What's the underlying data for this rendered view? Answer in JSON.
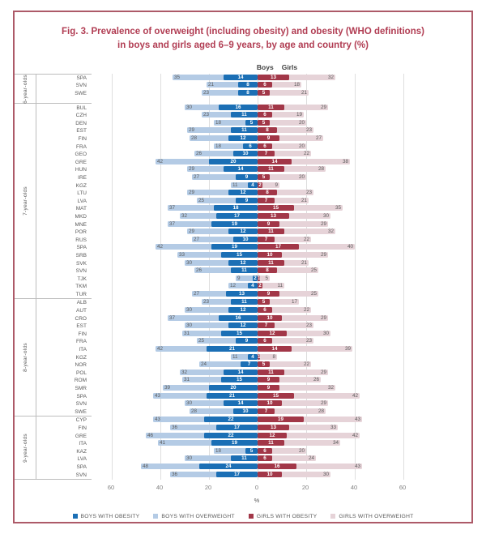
{
  "title_line1": "Fig. 3. Prevalence of overweight (including obesity) and obesity (WHO definitions)",
  "title_line2": "in boys and girls aged 6–9 years, by age and country (%)",
  "header": {
    "boys": "Boys",
    "girls": "Girls"
  },
  "axis": {
    "ticks": [
      "60",
      "40",
      "20",
      "0",
      "20",
      "40",
      "60"
    ],
    "unit_label": "%"
  },
  "legend": [
    {
      "label": "BOYS WITH OBESITY",
      "color": "#1b6fb5"
    },
    {
      "label": "BOYS WITH OVERWEIGHT",
      "color": "#b4cbe5"
    },
    {
      "label": "GIRLS WITH OBESITY",
      "color": "#a23748"
    },
    {
      "label": "GIRLS WITH OVERWEIGHT",
      "color": "#e6d3d8"
    }
  ],
  "colors": {
    "boys_obesity": "#1b6fb5",
    "boys_overweight": "#b4cbe5",
    "girls_obesity": "#a23748",
    "girls_overweight": "#e6d3d8",
    "title": "#b13d53",
    "frame_border": "#ad5a68"
  },
  "chart_data": {
    "type": "bar",
    "variant": "diverging-horizontal",
    "title": "Fig. 3. Prevalence of overweight (including obesity) and obesity (WHO definitions) in boys and girls aged 6–9 years, by age and country (%)",
    "xlabel": "%",
    "x_range_each_side": [
      0,
      60
    ],
    "x_ticks": [
      60,
      40,
      20,
      0,
      20,
      40,
      60
    ],
    "grid": true,
    "legend_position": "bottom",
    "left_side": "Boys",
    "right_side": "Girls",
    "columns": [
      "country",
      "boys_overweight_incl_obesity_pct",
      "boys_obesity_pct",
      "girls_obesity_pct",
      "girls_overweight_incl_obesity_pct"
    ],
    "groups": [
      {
        "label": "6-year-olds",
        "rows": [
          [
            "SPA",
            35,
            14,
            13,
            32
          ],
          [
            "SVN",
            21,
            8,
            6,
            18
          ],
          [
            "SWE",
            23,
            8,
            5,
            21
          ]
        ]
      },
      {
        "label": "7-year-olds",
        "rows": [
          [
            "BUL",
            30,
            16,
            11,
            29
          ],
          [
            "CZH",
            23,
            11,
            6,
            19
          ],
          [
            "DEN",
            18,
            5,
            5,
            20
          ],
          [
            "EST",
            29,
            11,
            8,
            23
          ],
          [
            "FIN",
            28,
            12,
            9,
            27
          ],
          [
            "FRA",
            18,
            6,
            6,
            20
          ],
          [
            "GEO",
            26,
            10,
            7,
            22
          ],
          [
            "GRE",
            42,
            20,
            14,
            38
          ],
          [
            "HUN",
            29,
            14,
            11,
            28
          ],
          [
            "IRE",
            27,
            9,
            5,
            20
          ],
          [
            "KGZ",
            11,
            4,
            2,
            9
          ],
          [
            "LTU",
            29,
            12,
            8,
            23
          ],
          [
            "LVA",
            25,
            9,
            7,
            21
          ],
          [
            "MAT",
            37,
            18,
            15,
            35
          ],
          [
            "MKD",
            32,
            17,
            13,
            30
          ],
          [
            "MNE",
            37,
            19,
            9,
            29
          ],
          [
            "POR",
            29,
            12,
            11,
            32
          ],
          [
            "RUS",
            27,
            10,
            7,
            22
          ],
          [
            "SPA",
            42,
            19,
            17,
            40
          ],
          [
            "SRB",
            33,
            15,
            10,
            29
          ],
          [
            "SVK",
            30,
            12,
            11,
            21
          ],
          [
            "SVN",
            26,
            11,
            8,
            25
          ],
          [
            "TJK",
            9,
            2,
            1,
            5
          ],
          [
            "TKM",
            12,
            4,
            2,
            11
          ],
          [
            "TUR",
            27,
            13,
            9,
            25
          ]
        ]
      },
      {
        "label": "8-year-olds",
        "rows": [
          [
            "ALB",
            23,
            11,
            5,
            17
          ],
          [
            "AUT",
            30,
            12,
            6,
            22
          ],
          [
            "CRO",
            37,
            16,
            10,
            29
          ],
          [
            "EST",
            30,
            12,
            7,
            23
          ],
          [
            "FIN",
            31,
            15,
            12,
            30
          ],
          [
            "FRA",
            25,
            9,
            6,
            23
          ],
          [
            "ITA",
            42,
            21,
            14,
            39
          ],
          [
            "KGZ",
            11,
            4,
            1,
            8
          ],
          [
            "NOR",
            24,
            7,
            5,
            22
          ],
          [
            "POL",
            32,
            14,
            11,
            29
          ],
          [
            "ROM",
            31,
            15,
            9,
            26
          ],
          [
            "SMR",
            39,
            20,
            9,
            32
          ],
          [
            "SPA",
            43,
            21,
            15,
            42
          ],
          [
            "SVN",
            30,
            14,
            10,
            29
          ],
          [
            "SWE",
            28,
            10,
            7,
            28
          ]
        ]
      },
      {
        "label": "9-year-olds",
        "rows": [
          [
            "CYP",
            43,
            22,
            19,
            43
          ],
          [
            "FIN",
            36,
            17,
            13,
            33
          ],
          [
            "GRE",
            46,
            22,
            12,
            42
          ],
          [
            "ITA",
            41,
            19,
            11,
            34
          ],
          [
            "KAZ",
            18,
            5,
            6,
            20
          ],
          [
            "LVA",
            30,
            11,
            6,
            24
          ],
          [
            "SPA",
            48,
            24,
            16,
            43
          ],
          [
            "SVN",
            36,
            17,
            10,
            30
          ]
        ]
      }
    ]
  }
}
